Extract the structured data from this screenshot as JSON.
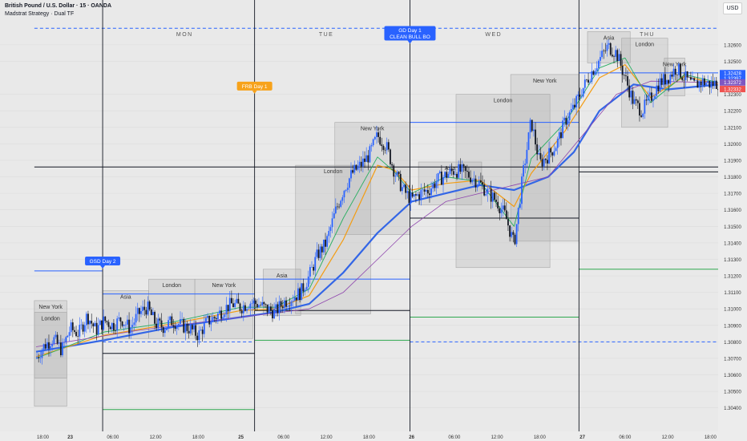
{
  "header": {
    "symbol_title": "British Pound / U.S. Dollar · 15 · OANDA",
    "indicator": "Madstrat Strategy · Dual TF",
    "currency": "USD"
  },
  "chart_data": {
    "type": "candlestick",
    "instrument": "GBP/USD",
    "timeframe": "15",
    "ylim": [
      1.3035,
      1.3275
    ],
    "y_ticks": [
      1.304,
      1.305,
      1.306,
      1.307,
      1.308,
      1.309,
      1.31,
      1.311,
      1.312,
      1.313,
      1.314,
      1.315,
      1.316,
      1.317,
      1.318,
      1.319,
      1.32,
      1.321,
      1.322,
      1.323,
      1.325,
      1.326
    ],
    "y_tick_labels": [
      "1.30400",
      "1.30500",
      "1.30600",
      "1.30700",
      "1.30800",
      "1.30900",
      "1.31000",
      "1.31100",
      "1.31200",
      "1.31300",
      "1.31400",
      "1.31500",
      "1.31600",
      "1.31700",
      "1.31800",
      "1.31900",
      "1.32000",
      "1.32100",
      "1.32200",
      "1.32300",
      "1.32500",
      "1.32600"
    ],
    "x_ticks": [
      {
        "label": "18:00",
        "t": 0.4
      },
      {
        "label": "23",
        "t": 2.0
      },
      {
        "label": "06:00",
        "t": 4.5
      },
      {
        "label": "12:00",
        "t": 7.0
      },
      {
        "label": "18:00",
        "t": 9.5
      },
      {
        "label": "25",
        "t": 12.0
      },
      {
        "label": "06:00",
        "t": 14.5
      },
      {
        "label": "12:00",
        "t": 17.0
      },
      {
        "label": "18:00",
        "t": 19.5
      },
      {
        "label": "26",
        "t": 22.0
      },
      {
        "label": "06:00",
        "t": 24.5
      },
      {
        "label": "12:00",
        "t": 27.0
      },
      {
        "label": "18:00",
        "t": 29.5
      },
      {
        "label": "27",
        "t": 32.0
      },
      {
        "label": "06:00",
        "t": 34.5
      },
      {
        "label": "12:00",
        "t": 37.0
      },
      {
        "label": "18:00",
        "t": 39.5
      }
    ],
    "bold_x_ticks": [
      "23",
      "25",
      "26",
      "27"
    ],
    "price_labels": [
      {
        "text": "1.32428",
        "price": 1.32428,
        "color": "#2962ff"
      },
      {
        "text": "1.32397",
        "price": 1.32397,
        "color": "#2962ff"
      },
      {
        "text": "1.32372",
        "price": 1.32372,
        "color": "#7e57c2"
      },
      {
        "text": "1.32332",
        "price": 1.32332,
        "color": "#ef5350"
      }
    ],
    "day_labels": [
      {
        "text": "MON",
        "t": 8.7
      },
      {
        "text": "TUE",
        "t": 17.0
      },
      {
        "text": "WED",
        "t": 26.8
      },
      {
        "text": "THU",
        "t": 35.8
      }
    ],
    "day_separators_t": [
      3.9,
      12.8,
      21.9,
      31.8
    ],
    "sessions": [
      {
        "name": "New York",
        "t0": -0.1,
        "t1": 1.8,
        "p0": 1.3058,
        "p1": 1.3105
      },
      {
        "name": "London",
        "t0": -0.1,
        "t1": 1.8,
        "p0": 1.3041,
        "p1": 1.3098
      },
      {
        "name": "Asia",
        "t0": 3.9,
        "t1": 6.6,
        "p0": 1.3082,
        "p1": 1.3111
      },
      {
        "name": "London",
        "t0": 6.6,
        "t1": 9.3,
        "p0": 1.3082,
        "p1": 1.3118
      },
      {
        "name": "New York",
        "t0": 9.3,
        "t1": 12.7,
        "p0": 1.3082,
        "p1": 1.3118
      },
      {
        "name": "Asia",
        "t0": 13.3,
        "t1": 15.5,
        "p0": 1.3096,
        "p1": 1.3124
      },
      {
        "name": "London",
        "t0": 15.2,
        "t1": 19.6,
        "p0": 1.3097,
        "p1": 1.3187
      },
      {
        "name": "New York",
        "t0": 17.5,
        "t1": 21.9,
        "p0": 1.3145,
        "p1": 1.3213
      },
      {
        "name": "Asia",
        "t0": 22.4,
        "t1": 26.1,
        "p0": 1.3163,
        "p1": 1.3189
      },
      {
        "name": "London",
        "t0": 24.6,
        "t1": 30.1,
        "p0": 1.3125,
        "p1": 1.323
      },
      {
        "name": "New York",
        "t0": 27.8,
        "t1": 31.8,
        "p0": 1.3141,
        "p1": 1.3242
      },
      {
        "name": "Asia",
        "t0": 32.3,
        "t1": 34.8,
        "p0": 1.3249,
        "p1": 1.3268
      },
      {
        "name": "London",
        "t0": 34.3,
        "t1": 37.0,
        "p0": 1.321,
        "p1": 1.3264
      },
      {
        "name": "New York",
        "t0": 36.8,
        "t1": 38.0,
        "p0": 1.3229,
        "p1": 1.3252
      }
    ],
    "horizontal_levels": [
      {
        "t0": -0.1,
        "t1": 40.5,
        "price": 1.3186,
        "color": "#131722",
        "style": "solid"
      },
      {
        "t0": -0.1,
        "t1": 40.5,
        "price": 1.327,
        "color": "#2962ff",
        "style": "dashed"
      },
      {
        "t0": -0.1,
        "t1": 3.9,
        "price": 1.3123,
        "color": "#2962ff",
        "style": "solid"
      },
      {
        "t0": 3.9,
        "t1": 12.8,
        "price": 1.3109,
        "color": "#2962ff",
        "style": "solid"
      },
      {
        "t0": 3.9,
        "t1": 12.8,
        "price": 1.3073,
        "color": "#131722",
        "style": "solid"
      },
      {
        "t0": 3.9,
        "t1": 12.8,
        "price": 1.308,
        "color": "#2962ff",
        "style": "dashed"
      },
      {
        "t0": 3.9,
        "t1": 12.8,
        "price": 1.3039,
        "color": "#2fa84f",
        "style": "solid"
      },
      {
        "t0": 12.8,
        "t1": 21.9,
        "price": 1.3118,
        "color": "#2962ff",
        "style": "solid"
      },
      {
        "t0": 12.8,
        "t1": 21.9,
        "price": 1.3099,
        "color": "#131722",
        "style": "solid"
      },
      {
        "t0": 12.8,
        "t1": 21.9,
        "price": 1.3081,
        "color": "#2fa84f",
        "style": "solid"
      },
      {
        "t0": 21.9,
        "t1": 31.8,
        "price": 1.3213,
        "color": "#2962ff",
        "style": "solid"
      },
      {
        "t0": 21.9,
        "t1": 31.8,
        "price": 1.3155,
        "color": "#131722",
        "style": "solid"
      },
      {
        "t0": 21.9,
        "t1": 31.8,
        "price": 1.3095,
        "color": "#2fa84f",
        "style": "solid"
      },
      {
        "t0": 21.9,
        "t1": 40.5,
        "price": 1.308,
        "color": "#2962ff",
        "style": "dashed"
      },
      {
        "t0": 31.8,
        "t1": 40.5,
        "price": 1.3243,
        "color": "#2962ff",
        "style": "solid"
      },
      {
        "t0": 31.8,
        "t1": 40.5,
        "price": 1.3183,
        "color": "#131722",
        "style": "solid"
      },
      {
        "t0": 31.8,
        "t1": 40.5,
        "price": 1.3124,
        "color": "#2fa84f",
        "style": "solid"
      }
    ],
    "tags": [
      {
        "text": "GSD Day 2",
        "t": 3.9,
        "price": 1.3129,
        "color": "#2962ff",
        "lines": 1
      },
      {
        "text": "FRB Day 1",
        "t": 12.8,
        "price": 1.3235,
        "color": "#f7a21b",
        "lines": 1
      },
      {
        "text": "GD Day 1",
        "text2": "CLEAN BULL BO",
        "t": 21.9,
        "price": 1.3267,
        "color": "#2962ff",
        "lines": 2
      }
    ],
    "price_path": [
      [
        0.0,
        1.307
      ],
      [
        0.5,
        1.3078
      ],
      [
        1.0,
        1.3082
      ],
      [
        1.5,
        1.3075
      ],
      [
        2.0,
        1.3088
      ],
      [
        2.5,
        1.3085
      ],
      [
        3.0,
        1.3096
      ],
      [
        3.5,
        1.3087
      ],
      [
        4.0,
        1.3093
      ],
      [
        4.5,
        1.309
      ],
      [
        5.0,
        1.3094
      ],
      [
        5.5,
        1.3088
      ],
      [
        6.0,
        1.3097
      ],
      [
        6.5,
        1.3101
      ],
      [
        7.0,
        1.3091
      ],
      [
        7.5,
        1.3089
      ],
      [
        8.0,
        1.3093
      ],
      [
        8.5,
        1.309
      ],
      [
        9.0,
        1.3088
      ],
      [
        9.5,
        1.3084
      ],
      [
        10.0,
        1.3092
      ],
      [
        10.5,
        1.3095
      ],
      [
        11.0,
        1.31
      ],
      [
        11.5,
        1.3103
      ],
      [
        12.0,
        1.3101
      ],
      [
        12.5,
        1.3104
      ],
      [
        13.0,
        1.3103
      ],
      [
        13.5,
        1.31
      ],
      [
        14.0,
        1.3098
      ],
      [
        14.5,
        1.3104
      ],
      [
        15.0,
        1.3107
      ],
      [
        15.5,
        1.311
      ],
      [
        16.0,
        1.312
      ],
      [
        16.5,
        1.3133
      ],
      [
        17.0,
        1.314
      ],
      [
        17.5,
        1.3158
      ],
      [
        18.0,
        1.3172
      ],
      [
        18.5,
        1.3182
      ],
      [
        19.0,
        1.3187
      ],
      [
        19.5,
        1.3193
      ],
      [
        20.0,
        1.3205
      ],
      [
        20.5,
        1.3199
      ],
      [
        21.0,
        1.3183
      ],
      [
        21.5,
        1.3172
      ],
      [
        22.0,
        1.3166
      ],
      [
        22.5,
        1.317
      ],
      [
        23.0,
        1.3172
      ],
      [
        23.5,
        1.3178
      ],
      [
        24.0,
        1.3181
      ],
      [
        24.5,
        1.3184
      ],
      [
        25.0,
        1.3183
      ],
      [
        25.5,
        1.318
      ],
      [
        26.0,
        1.3176
      ],
      [
        26.5,
        1.317
      ],
      [
        27.0,
        1.3165
      ],
      [
        27.5,
        1.3156
      ],
      [
        28.0,
        1.3139
      ],
      [
        28.5,
        1.318
      ],
      [
        29.0,
        1.3214
      ],
      [
        29.5,
        1.3188
      ],
      [
        30.0,
        1.3193
      ],
      [
        30.5,
        1.32
      ],
      [
        31.0,
        1.3214
      ],
      [
        31.5,
        1.3222
      ],
      [
        32.0,
        1.3233
      ],
      [
        32.5,
        1.3243
      ],
      [
        33.0,
        1.3251
      ],
      [
        33.5,
        1.3259
      ],
      [
        34.0,
        1.3255
      ],
      [
        34.5,
        1.324
      ],
      [
        35.0,
        1.3225
      ],
      [
        35.5,
        1.322
      ],
      [
        36.0,
        1.3228
      ],
      [
        36.5,
        1.3237
      ],
      [
        37.0,
        1.324
      ],
      [
        37.5,
        1.3246
      ],
      [
        38.0,
        1.324
      ],
      [
        38.5,
        1.3235
      ],
      [
        39.0,
        1.3238
      ],
      [
        39.5,
        1.3236
      ],
      [
        40.0,
        1.3237
      ]
    ],
    "moving_averages": [
      {
        "name": "MA slow",
        "color": "#3366e6",
        "width": 2.2,
        "points": [
          [
            0,
            1.3074
          ],
          [
            4,
            1.3081
          ],
          [
            8,
            1.3089
          ],
          [
            12,
            1.3095
          ],
          [
            14,
            1.3098
          ],
          [
            16,
            1.3103
          ],
          [
            18,
            1.3122
          ],
          [
            20,
            1.3146
          ],
          [
            22,
            1.3165
          ],
          [
            24,
            1.317
          ],
          [
            26,
            1.3175
          ],
          [
            28,
            1.3172
          ],
          [
            30,
            1.318
          ],
          [
            31.5,
            1.3195
          ],
          [
            33,
            1.322
          ],
          [
            35,
            1.3236
          ],
          [
            37,
            1.3233
          ],
          [
            40,
            1.3236
          ]
        ]
      },
      {
        "name": "MA mid",
        "color": "#f39c12",
        "width": 1.2,
        "points": [
          [
            0,
            1.3071
          ],
          [
            4,
            1.3084
          ],
          [
            8,
            1.3091
          ],
          [
            12,
            1.3099
          ],
          [
            14,
            1.31
          ],
          [
            16,
            1.3108
          ],
          [
            18,
            1.3142
          ],
          [
            20,
            1.3187
          ],
          [
            21,
            1.3184
          ],
          [
            22,
            1.3172
          ],
          [
            24,
            1.3176
          ],
          [
            26,
            1.3178
          ],
          [
            28,
            1.3162
          ],
          [
            29,
            1.3182
          ],
          [
            31,
            1.3208
          ],
          [
            33,
            1.324
          ],
          [
            34.5,
            1.3248
          ],
          [
            36,
            1.3228
          ],
          [
            38,
            1.3241
          ],
          [
            40,
            1.3236
          ]
        ]
      },
      {
        "name": "MA fast",
        "color": "#27ae60",
        "width": 0.9,
        "points": [
          [
            0,
            1.307
          ],
          [
            4,
            1.3086
          ],
          [
            8,
            1.3092
          ],
          [
            12,
            1.3101
          ],
          [
            14,
            1.3101
          ],
          [
            16,
            1.3112
          ],
          [
            18,
            1.3155
          ],
          [
            20,
            1.3192
          ],
          [
            21,
            1.3183
          ],
          [
            22,
            1.317
          ],
          [
            24,
            1.318
          ],
          [
            26,
            1.3177
          ],
          [
            28,
            1.315
          ],
          [
            29,
            1.3191
          ],
          [
            31,
            1.3213
          ],
          [
            33,
            1.3246
          ],
          [
            34.5,
            1.3252
          ],
          [
            36,
            1.3225
          ],
          [
            38,
            1.3242
          ],
          [
            40,
            1.3237
          ]
        ]
      },
      {
        "name": "MA long",
        "color": "#8e44ad",
        "width": 0.8,
        "points": [
          [
            0,
            1.3077
          ],
          [
            6,
            1.3087
          ],
          [
            12,
            1.3095
          ],
          [
            16,
            1.31
          ],
          [
            18,
            1.311
          ],
          [
            20,
            1.313
          ],
          [
            22,
            1.315
          ],
          [
            24,
            1.3165
          ],
          [
            26,
            1.317
          ],
          [
            28,
            1.3175
          ],
          [
            30,
            1.318
          ],
          [
            32,
            1.3205
          ],
          [
            34,
            1.323
          ],
          [
            36,
            1.3238
          ],
          [
            40,
            1.3237
          ]
        ]
      }
    ]
  }
}
